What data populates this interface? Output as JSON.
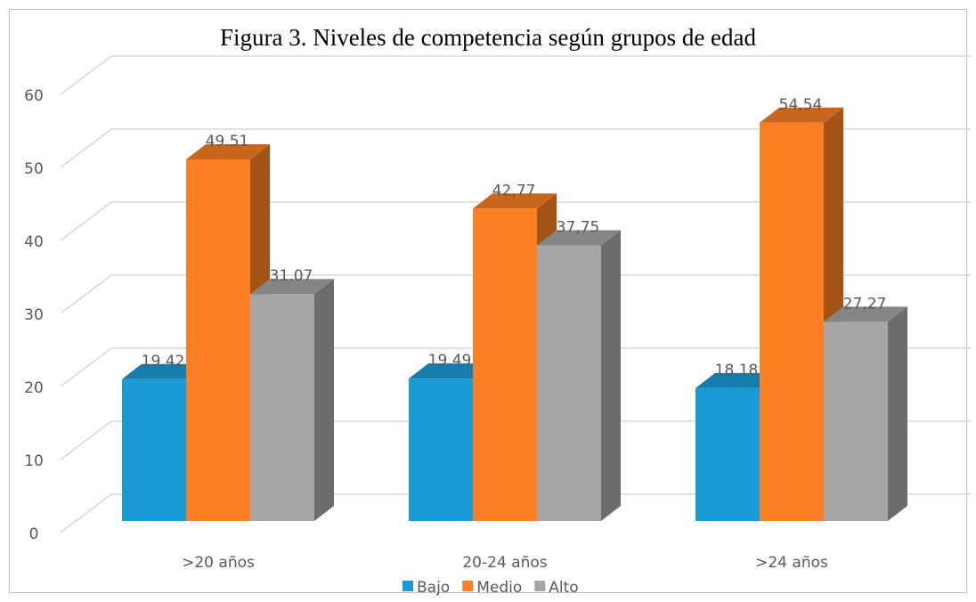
{
  "chart_data": {
    "type": "bar3d",
    "title": "Figura 3. Niveles de competencia según grupos de edad",
    "categories": [
      ">20 años",
      "20-24 años",
      ">24 años"
    ],
    "series": [
      {
        "name": "Bajo",
        "color": "#1a9bd7",
        "values": [
          19.42,
          19.49,
          18.18
        ],
        "value_labels": [
          "19.42",
          "19.49",
          "18.18"
        ]
      },
      {
        "name": "Medio",
        "color": "#fd7f23",
        "values": [
          49.51,
          42.77,
          54.54
        ],
        "value_labels": [
          "49.51",
          "42,77",
          "54,54"
        ]
      },
      {
        "name": "Alto",
        "color": "#a6a6a6",
        "values": [
          31.07,
          37.75,
          27.27
        ],
        "value_labels": [
          "31.07",
          "37,75",
          "27,27"
        ]
      }
    ],
    "ylim": [
      0,
      60
    ],
    "yticks": [
      0,
      10,
      20,
      30,
      40,
      50,
      60
    ],
    "grid": true,
    "legend": "bottom"
  }
}
